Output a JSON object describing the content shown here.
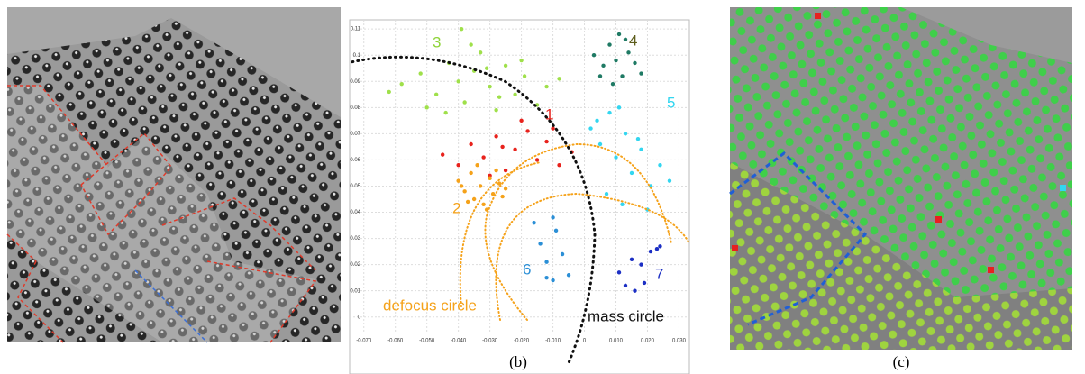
{
  "chart_data": {
    "type": "scatter",
    "series": [
      {
        "name": "3",
        "color": "#9fe04a",
        "x": [
          -0.058,
          -0.052,
          -0.047,
          -0.043,
          -0.04,
          -0.038,
          -0.035,
          -0.033,
          -0.03,
          -0.028,
          -0.025,
          -0.022,
          -0.019,
          -0.015,
          -0.012,
          -0.044,
          -0.036,
          -0.031,
          -0.027,
          -0.02,
          -0.05,
          -0.008,
          -0.062,
          -0.039
        ],
        "values": [
          0.089,
          0.093,
          0.085,
          0.097,
          0.09,
          0.082,
          0.094,
          0.101,
          0.088,
          0.079,
          0.096,
          0.085,
          0.092,
          0.081,
          0.088,
          0.078,
          0.104,
          0.095,
          0.084,
          0.098,
          0.08,
          0.091,
          0.086,
          0.11
        ]
      },
      {
        "name": "4",
        "color": "#1f7a64",
        "x": [
          0.003,
          0.006,
          0.008,
          0.01,
          0.012,
          0.014,
          0.016,
          0.005,
          0.009,
          0.013,
          0.018,
          0.011
        ],
        "values": [
          0.1,
          0.096,
          0.104,
          0.098,
          0.092,
          0.101,
          0.097,
          0.092,
          0.089,
          0.106,
          0.093,
          0.108
        ]
      },
      {
        "name": "1",
        "color": "#e8221c",
        "x": [
          -0.045,
          -0.04,
          -0.036,
          -0.032,
          -0.028,
          -0.025,
          -0.022,
          -0.018,
          -0.015,
          -0.012,
          -0.008,
          -0.004,
          -0.03,
          -0.02,
          -0.01,
          -0.026
        ],
        "values": [
          0.062,
          0.058,
          0.066,
          0.061,
          0.069,
          0.056,
          0.064,
          0.071,
          0.06,
          0.067,
          0.058,
          0.063,
          0.054,
          0.075,
          0.072,
          0.065
        ]
      },
      {
        "name": "2",
        "color": "#f5a21a",
        "x": [
          -0.04,
          -0.038,
          -0.036,
          -0.035,
          -0.033,
          -0.032,
          -0.03,
          -0.029,
          -0.027,
          -0.025,
          -0.034,
          -0.031,
          -0.037,
          -0.028,
          -0.026,
          -0.039
        ],
        "values": [
          0.052,
          0.048,
          0.055,
          0.045,
          0.05,
          0.043,
          0.053,
          0.047,
          0.051,
          0.049,
          0.058,
          0.041,
          0.044,
          0.056,
          0.046,
          0.05
        ]
      },
      {
        "name": "5",
        "color": "#33d6f0",
        "x": [
          0.002,
          0.005,
          0.008,
          0.01,
          0.013,
          0.015,
          0.018,
          0.021,
          0.024,
          0.007,
          0.012,
          0.017,
          0.004,
          0.02,
          0.027,
          0.011
        ],
        "values": [
          0.072,
          0.066,
          0.078,
          0.061,
          0.07,
          0.055,
          0.064,
          0.05,
          0.058,
          0.047,
          0.043,
          0.068,
          0.075,
          0.041,
          0.052,
          0.08
        ]
      },
      {
        "name": "6",
        "color": "#2b8fd6",
        "x": [
          -0.016,
          -0.014,
          -0.012,
          -0.01,
          -0.009,
          -0.007,
          -0.012,
          -0.005,
          -0.01
        ],
        "values": [
          0.036,
          0.028,
          0.015,
          0.014,
          0.033,
          0.024,
          0.021,
          0.016,
          0.038
        ]
      },
      {
        "name": "7",
        "color": "#1c2fc4",
        "x": [
          0.011,
          0.013,
          0.016,
          0.019,
          0.021,
          0.023,
          0.024,
          0.018,
          0.015
        ],
        "values": [
          0.017,
          0.012,
          0.01,
          0.013,
          0.025,
          0.026,
          0.027,
          0.02,
          0.022
        ]
      }
    ],
    "xlim": [
      -0.0745,
      0.0333
    ],
    "ylim": [
      -0.0056,
      0.1135
    ],
    "xticks": [
      {
        "value": -0.07,
        "label": "-0.070"
      },
      {
        "value": -0.06,
        "label": "-0.060"
      },
      {
        "value": -0.05,
        "label": "-0.050"
      },
      {
        "value": -0.04,
        "label": "-0.040"
      },
      {
        "value": -0.03,
        "label": "-0.030"
      },
      {
        "value": -0.02,
        "label": "-0.020"
      },
      {
        "value": -0.01,
        "label": "-0.010"
      },
      0,
      {
        "value": 0.01,
        "label": "0.010"
      },
      {
        "value": 0.02,
        "label": "0.020"
      },
      {
        "value": 0.03,
        "label": "0.030"
      }
    ],
    "yticks": [
      0,
      0.01,
      0.02,
      0.03,
      0.04,
      0.05,
      0.06,
      0.07,
      0.08,
      0.09,
      0.1,
      0.11
    ],
    "grid": true,
    "annotations": [
      "defocus circle",
      "mass circle"
    ]
  },
  "captions": [
    "(b)",
    "(c)"
  ]
}
